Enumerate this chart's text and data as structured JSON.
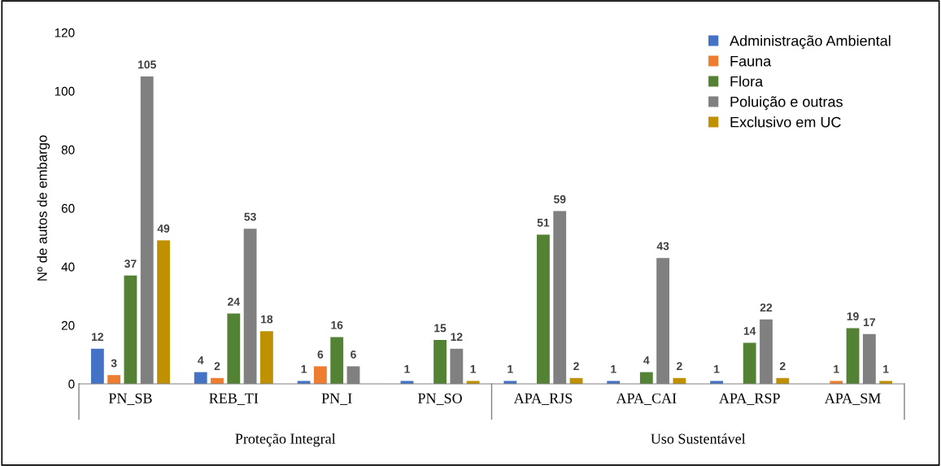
{
  "chart_data": {
    "type": "bar",
    "ylabel": "Nº de autos de embargo",
    "categories": [
      "PN_SB",
      "REB_TI",
      "PN_I",
      "PN_SO",
      "APA_RJS",
      "APA_CAI",
      "APA_RSP",
      "APA_SM"
    ],
    "series": [
      {
        "name": "Administração Ambiental",
        "color": "#4472c4",
        "values": [
          12,
          4,
          1,
          1,
          1,
          1,
          1,
          null
        ]
      },
      {
        "name": "Fauna",
        "color": "#ed7d31",
        "values": [
          3,
          2,
          6,
          null,
          null,
          null,
          null,
          1
        ]
      },
      {
        "name": "Flora",
        "color": "#548235",
        "values": [
          37,
          24,
          16,
          15,
          51,
          4,
          14,
          19
        ]
      },
      {
        "name": "Poluição e outras",
        "color": "#808080",
        "values": [
          105,
          53,
          6,
          12,
          59,
          43,
          22,
          17
        ]
      },
      {
        "name": "Exclusivo em UC",
        "color": "#bf9000",
        "values": [
          49,
          18,
          null,
          1,
          2,
          2,
          2,
          1
        ]
      }
    ],
    "ylim": [
      0,
      120
    ],
    "yticks": [
      0,
      20,
      40,
      60,
      80,
      100,
      120
    ],
    "data_labels": true,
    "legend": "top right",
    "grid": false,
    "annotations": [
      "Proteção Integral",
      "Uso Sustentável"
    ]
  }
}
